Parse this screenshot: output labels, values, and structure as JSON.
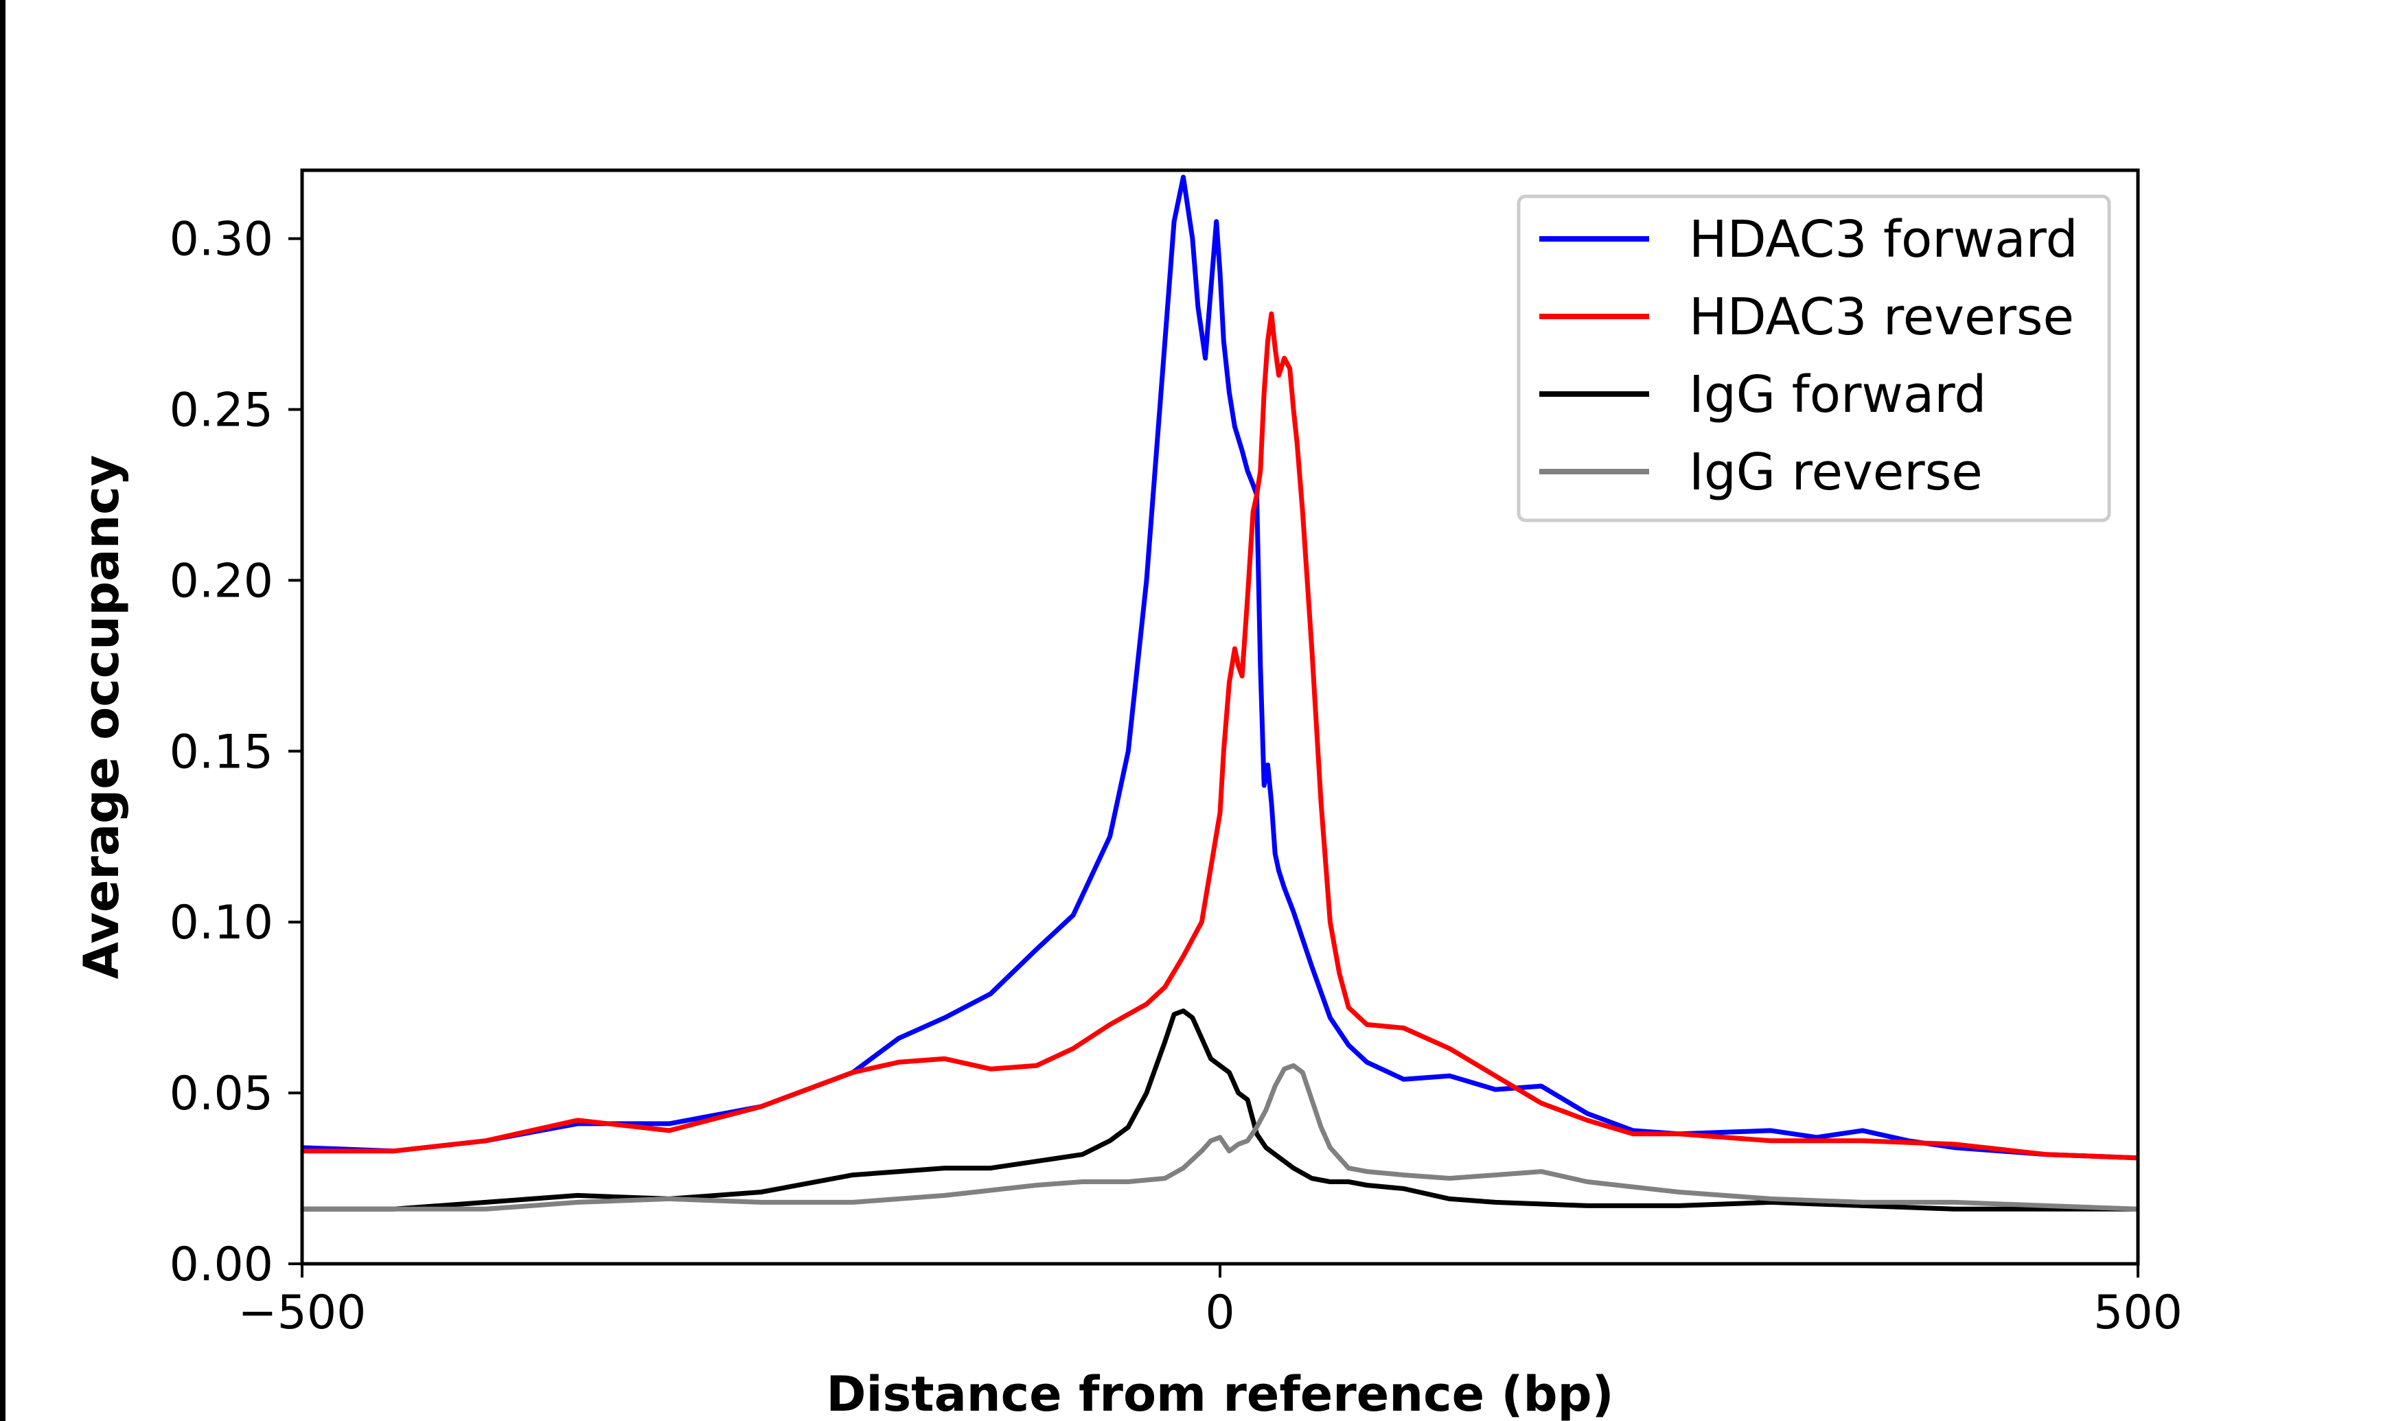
{
  "chart_data": {
    "type": "line",
    "xlabel": "Distance from reference (bp)",
    "ylabel": "Average occupancy",
    "xlim": [
      -500,
      500
    ],
    "ylim": [
      0,
      0.32
    ],
    "xticks": [
      -500,
      0,
      500
    ],
    "xtick_labels": [
      "−500",
      "0",
      "500"
    ],
    "yticks": [
      0.0,
      0.05,
      0.1,
      0.15,
      0.2,
      0.25,
      0.3
    ],
    "ytick_labels": [
      "0.00",
      "0.05",
      "0.10",
      "0.15",
      "0.20",
      "0.25",
      "0.30"
    ],
    "grid": false,
    "legend_position": "top-right",
    "series": [
      {
        "name": "HDAC3 forward",
        "color": "#0000ff",
        "x": [
          -500,
          -450,
          -400,
          -350,
          -300,
          -250,
          -200,
          -175,
          -150,
          -125,
          -100,
          -80,
          -60,
          -50,
          -40,
          -30,
          -25,
          -20,
          -15,
          -12,
          -8,
          -5,
          -2,
          0,
          2,
          5,
          8,
          12,
          15,
          18,
          20,
          22,
          24,
          26,
          28,
          30,
          32,
          35,
          40,
          50,
          60,
          70,
          80,
          100,
          125,
          150,
          175,
          200,
          225,
          250,
          300,
          325,
          350,
          375,
          400,
          450,
          500
        ],
        "y": [
          0.034,
          0.033,
          0.036,
          0.041,
          0.041,
          0.046,
          0.056,
          0.066,
          0.072,
          0.079,
          0.092,
          0.102,
          0.125,
          0.15,
          0.2,
          0.27,
          0.305,
          0.318,
          0.3,
          0.28,
          0.265,
          0.285,
          0.305,
          0.29,
          0.27,
          0.255,
          0.245,
          0.238,
          0.232,
          0.228,
          0.225,
          0.175,
          0.14,
          0.146,
          0.135,
          0.12,
          0.115,
          0.11,
          0.103,
          0.087,
          0.072,
          0.064,
          0.059,
          0.054,
          0.055,
          0.051,
          0.052,
          0.044,
          0.039,
          0.038,
          0.039,
          0.037,
          0.039,
          0.036,
          0.034,
          0.032,
          0.031
        ]
      },
      {
        "name": "HDAC3 reverse",
        "color": "#ff0000",
        "x": [
          -500,
          -450,
          -400,
          -350,
          -300,
          -250,
          -200,
          -175,
          -150,
          -125,
          -100,
          -80,
          -60,
          -40,
          -30,
          -20,
          -10,
          0,
          2,
          5,
          8,
          10,
          12,
          15,
          18,
          20,
          22,
          24,
          26,
          28,
          30,
          32,
          35,
          38,
          40,
          42,
          45,
          50,
          55,
          60,
          65,
          70,
          80,
          100,
          125,
          150,
          175,
          200,
          225,
          250,
          300,
          350,
          400,
          450,
          500
        ],
        "y": [
          0.033,
          0.033,
          0.036,
          0.042,
          0.039,
          0.046,
          0.056,
          0.059,
          0.06,
          0.057,
          0.058,
          0.063,
          0.07,
          0.076,
          0.081,
          0.09,
          0.1,
          0.132,
          0.15,
          0.17,
          0.18,
          0.175,
          0.172,
          0.195,
          0.22,
          0.225,
          0.232,
          0.255,
          0.27,
          0.278,
          0.268,
          0.26,
          0.265,
          0.262,
          0.25,
          0.24,
          0.22,
          0.18,
          0.135,
          0.1,
          0.085,
          0.075,
          0.07,
          0.069,
          0.063,
          0.055,
          0.047,
          0.042,
          0.038,
          0.038,
          0.036,
          0.036,
          0.035,
          0.032,
          0.031
        ]
      },
      {
        "name": "IgG forward",
        "color": "#000000",
        "x": [
          -500,
          -450,
          -400,
          -350,
          -300,
          -250,
          -200,
          -175,
          -150,
          -125,
          -100,
          -75,
          -60,
          -50,
          -40,
          -30,
          -25,
          -20,
          -15,
          -10,
          -5,
          0,
          5,
          10,
          15,
          20,
          25,
          30,
          40,
          50,
          60,
          70,
          80,
          100,
          125,
          150,
          200,
          250,
          300,
          350,
          400,
          450,
          500
        ],
        "y": [
          0.016,
          0.016,
          0.018,
          0.02,
          0.019,
          0.021,
          0.026,
          0.027,
          0.028,
          0.028,
          0.03,
          0.032,
          0.036,
          0.04,
          0.05,
          0.065,
          0.073,
          0.074,
          0.072,
          0.066,
          0.06,
          0.058,
          0.056,
          0.05,
          0.048,
          0.038,
          0.034,
          0.032,
          0.028,
          0.025,
          0.024,
          0.024,
          0.023,
          0.022,
          0.019,
          0.018,
          0.017,
          0.017,
          0.018,
          0.017,
          0.016,
          0.016,
          0.016
        ]
      },
      {
        "name": "IgG reverse",
        "color": "#808080",
        "x": [
          -500,
          -450,
          -400,
          -350,
          -300,
          -250,
          -200,
          -150,
          -100,
          -75,
          -50,
          -30,
          -20,
          -10,
          -5,
          0,
          5,
          10,
          15,
          20,
          25,
          30,
          35,
          40,
          45,
          50,
          55,
          60,
          70,
          80,
          100,
          125,
          150,
          175,
          200,
          250,
          300,
          350,
          400,
          450,
          500
        ],
        "y": [
          0.016,
          0.016,
          0.016,
          0.018,
          0.019,
          0.018,
          0.018,
          0.02,
          0.023,
          0.024,
          0.024,
          0.025,
          0.028,
          0.033,
          0.036,
          0.037,
          0.033,
          0.035,
          0.036,
          0.04,
          0.045,
          0.052,
          0.057,
          0.058,
          0.056,
          0.048,
          0.04,
          0.034,
          0.028,
          0.027,
          0.026,
          0.025,
          0.026,
          0.027,
          0.024,
          0.021,
          0.019,
          0.018,
          0.018,
          0.017,
          0.016
        ]
      }
    ]
  }
}
